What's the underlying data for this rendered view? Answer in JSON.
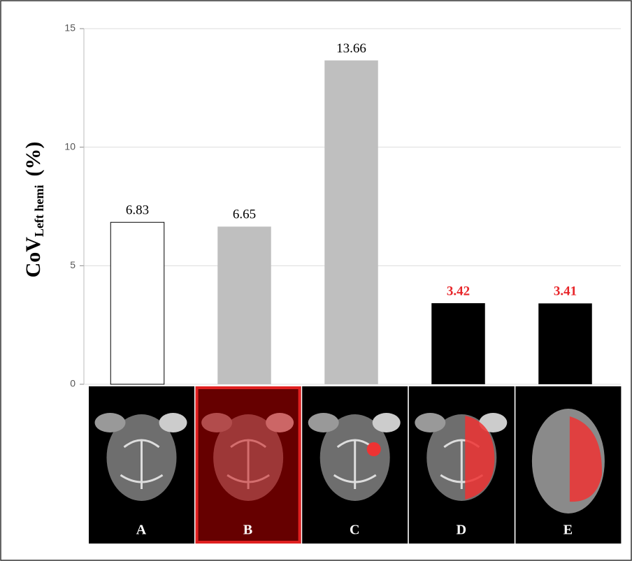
{
  "chart_data": {
    "type": "bar",
    "y_label": "CoV",
    "y_label_subscript": "Left hemi",
    "y_label_unit": "(%)",
    "categories": [
      "A",
      "B",
      "C",
      "D",
      "E"
    ],
    "values": [
      6.83,
      6.65,
      13.66,
      3.42,
      3.41
    ],
    "colors": [
      "#ffffff",
      "#bfbfbf",
      "#bfbfbf",
      "#000000",
      "#000000"
    ],
    "label_colors": [
      "#000000",
      "#000000",
      "#000000",
      "#e8262a",
      "#e8262a"
    ],
    "ylim": [
      0,
      15
    ],
    "yticks": [
      0,
      5,
      10,
      15
    ],
    "grid": true
  }
}
